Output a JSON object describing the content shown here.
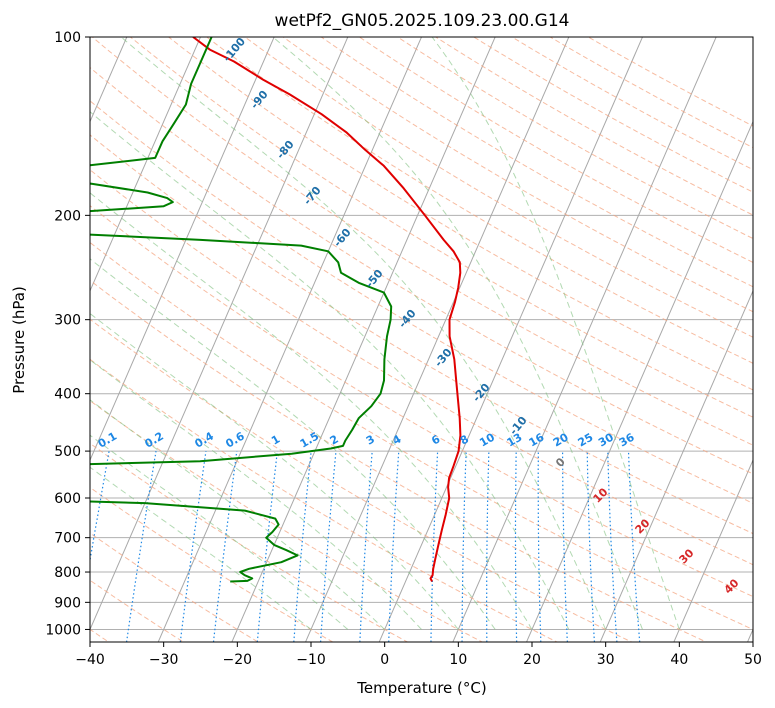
{
  "chart_data": {
    "type": "line",
    "title": "wetPf2_GN05.2025.109.23.00.G14",
    "xlabel": "Temperature (°C)",
    "ylabel": "Pressure (hPa)",
    "xlim": [
      -40,
      50
    ],
    "ylim": [
      1050,
      100
    ],
    "y_scale": "log",
    "skew_deg_per_decade": 35,
    "x_ticks": [
      -40,
      -30,
      -20,
      -10,
      0,
      10,
      20,
      30,
      40,
      50
    ],
    "y_ticks": [
      1000,
      900,
      800,
      700,
      600,
      500,
      400,
      300,
      200,
      100
    ],
    "grid": true,
    "series": [
      {
        "role": "temperature",
        "color": "#e00000",
        "points": [
          [
            830,
            3.6
          ],
          [
            820,
            3.2
          ],
          [
            810,
            3.3
          ],
          [
            790,
            3.0
          ],
          [
            760,
            2.7
          ],
          [
            720,
            2.3
          ],
          [
            680,
            1.9
          ],
          [
            640,
            1.5
          ],
          [
            600,
            1.0
          ],
          [
            575,
            0.2
          ],
          [
            555,
            -0.2
          ],
          [
            530,
            -0.3
          ],
          [
            500,
            -0.5
          ],
          [
            470,
            -1.2
          ],
          [
            440,
            -2.3
          ],
          [
            410,
            -3.6
          ],
          [
            380,
            -5.0
          ],
          [
            350,
            -6.5
          ],
          [
            320,
            -8.5
          ],
          [
            300,
            -9.5
          ],
          [
            280,
            -9.8
          ],
          [
            265,
            -10.2
          ],
          [
            250,
            -10.8
          ],
          [
            240,
            -11.5
          ],
          [
            230,
            -13.0
          ],
          [
            220,
            -15.0
          ],
          [
            200,
            -19.0
          ],
          [
            180,
            -23.5
          ],
          [
            165,
            -27.5
          ],
          [
            155,
            -31.0
          ],
          [
            145,
            -34.5
          ],
          [
            135,
            -39.0
          ],
          [
            125,
            -44.5
          ],
          [
            118,
            -49.0
          ],
          [
            110,
            -54.0
          ],
          [
            105,
            -58.0
          ],
          [
            100,
            -61.0
          ]
        ]
      },
      {
        "role": "dewpoint",
        "color": "#007f00",
        "points": [
          [
            830,
            -23.8
          ],
          [
            828,
            -21.5
          ],
          [
            820,
            -21.0
          ],
          [
            810,
            -22.2
          ],
          [
            800,
            -23.0
          ],
          [
            790,
            -22.0
          ],
          [
            770,
            -18.0
          ],
          [
            750,
            -16.2
          ],
          [
            735,
            -18.0
          ],
          [
            720,
            -20.0
          ],
          [
            700,
            -21.5
          ],
          [
            685,
            -21.0
          ],
          [
            665,
            -20.6
          ],
          [
            650,
            -21.4
          ],
          [
            630,
            -26.0
          ],
          [
            612,
            -40.0
          ],
          [
            604,
            -56.0
          ],
          [
            600,
            -68.0
          ],
          [
            540,
            -100.0
          ],
          [
            534,
            -70.0
          ],
          [
            520,
            -35.0
          ],
          [
            505,
            -23.0
          ],
          [
            495,
            -18.0
          ],
          [
            490,
            -16.5
          ],
          [
            480,
            -16.5
          ],
          [
            460,
            -16.2
          ],
          [
            440,
            -16.0
          ],
          [
            420,
            -15.0
          ],
          [
            400,
            -14.5
          ],
          [
            380,
            -14.8
          ],
          [
            350,
            -16.0
          ],
          [
            320,
            -17.0
          ],
          [
            300,
            -17.5
          ],
          [
            285,
            -18.2
          ],
          [
            270,
            -20.0
          ],
          [
            260,
            -24.0
          ],
          [
            250,
            -27.0
          ],
          [
            240,
            -28.0
          ],
          [
            230,
            -30.0
          ],
          [
            225,
            -34.0
          ],
          [
            220,
            -48.0
          ],
          [
            215,
            -65.0
          ],
          [
            210,
            -72.0
          ],
          [
            205,
            -75.0
          ],
          [
            200,
            -72.0
          ],
          [
            198,
            -68.0
          ],
          [
            195,
            -60.0
          ],
          [
            193,
            -55.0
          ],
          [
            190,
            -54.0
          ],
          [
            187,
            -55.0
          ],
          [
            183,
            -58.0
          ],
          [
            177,
            -66.0
          ],
          [
            173,
            -72.0
          ],
          [
            170,
            -72.5
          ],
          [
            165,
            -68.0
          ],
          [
            160,
            -59.0
          ],
          [
            150,
            -59.0
          ],
          [
            140,
            -58.5
          ],
          [
            130,
            -58.0
          ],
          [
            120,
            -58.5
          ],
          [
            110,
            -58.5
          ],
          [
            100,
            -58.5
          ]
        ]
      }
    ],
    "mixing_ratio_labels": [
      "0.1",
      "0.2",
      "0.4",
      "0.6",
      "1",
      "1.5",
      "2",
      "3",
      "4",
      "6",
      "8",
      "10",
      "13",
      "16",
      "20",
      "25",
      "30",
      "36"
    ],
    "dry_adiabat_labels": [
      "-100",
      "-90",
      "-80",
      "-70",
      "-60",
      "-50",
      "-40",
      "-30",
      "-20",
      "-10"
    ],
    "moist_adiabat_labels": [
      "0",
      "10",
      "20",
      "30",
      "40"
    ]
  }
}
